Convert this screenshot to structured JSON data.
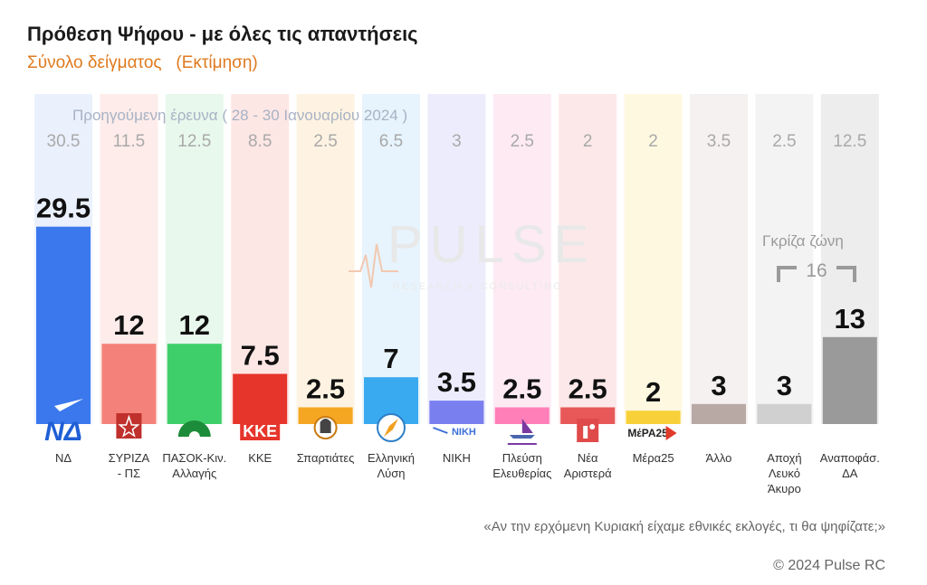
{
  "title": "Πρόθεση Ψήφου - με όλες τις απαντήσεις",
  "subtitle": "Σύνολο δείγματος   (Εκτίμηση)",
  "previous_survey_label": "Προηγούμενη έρευνα ( 28 - 30 Ιανουαρίου 2024 )",
  "watermark": {
    "brand": "PULSE",
    "tagline": "RESEARCH & CONSULTING"
  },
  "gray_zone": {
    "label": "Γκρίζα ζώνη",
    "value": "16"
  },
  "question": "«Αν την ερχόμενη Κυριακή είχαμε εθνικές εκλογές, τι θα ψηφίζατε;»",
  "copyright": "© 2024 Pulse RC",
  "chart_data": {
    "type": "bar",
    "title": "Πρόθεση Ψήφου - με όλες τις απαντήσεις",
    "subtitle": "Σύνολο δείγματος   (Εκτίμηση)",
    "categories": [
      "ΝΔ",
      "ΣΥΡΙΖΑ - ΠΣ",
      "ΠΑΣΟΚ-Κιν. Αλλαγής",
      "ΚΚΕ",
      "Σπαρτιάτες",
      "Ελληνική Λύση",
      "ΝΙΚΗ",
      "Πλεύση Ελευθερίας",
      "Νέα Αριστερά",
      "Μέρα25",
      "Άλλο",
      "Αποχή Λευκό Άκυρο",
      "Αναποφάσ. ΔΑ"
    ],
    "category_lines": [
      [
        "ΝΔ"
      ],
      [
        "ΣΥΡΙΖΑ",
        "- ΠΣ"
      ],
      [
        "ΠΑΣΟΚ-Κιν.",
        "Αλλαγής"
      ],
      [
        "ΚΚΕ"
      ],
      [
        "Σπαρτιάτες"
      ],
      [
        "Ελληνική",
        "Λύση"
      ],
      [
        "ΝΙΚΗ"
      ],
      [
        "Πλεύση",
        "Ελευθερίας"
      ],
      [
        "Νέα",
        "Αριστερά"
      ],
      [
        "Μέρα25"
      ],
      [
        "Άλλο"
      ],
      [
        "Αποχή",
        "Λευκό",
        "Άκυρο"
      ],
      [
        "Αναποφάσ.",
        "ΔΑ"
      ]
    ],
    "series": [
      {
        "name": "",
        "values": [
          29.5,
          12,
          12,
          7.5,
          2.5,
          7,
          3.5,
          2.5,
          2.5,
          2,
          3,
          3,
          13
        ]
      },
      {
        "name": "Προηγούμενη έρευνα ( 28 - 30 Ιανουαρίου 2024 )",
        "values": [
          30.5,
          11.5,
          12.5,
          8.5,
          2.5,
          6.5,
          3,
          2.5,
          2,
          2,
          3.5,
          2.5,
          12.5
        ]
      }
    ],
    "value_labels": [
      "29.5",
      "12",
      "12",
      "7.5",
      "2.5",
      "7",
      "3.5",
      "2.5",
      "2.5",
      "2",
      "3",
      "3",
      "13"
    ],
    "previous_labels": [
      "30.5",
      "11.5",
      "12.5",
      "8.5",
      "2.5",
      "6.5",
      "3",
      "2.5",
      "2",
      "2",
      "3.5",
      "2.5",
      "12.5"
    ],
    "colors": [
      "#3b78ee",
      "#f4827a",
      "#3fcf6a",
      "#e6352b",
      "#f5a623",
      "#3aaaf0",
      "#7a7ff0",
      "#ff7fb8",
      "#e85858",
      "#f8d13a",
      "#b8a9a4",
      "#d0d0d0",
      "#9a9a9a"
    ],
    "bg_colors": [
      "#eaf1fd",
      "#fdecea",
      "#e8f8ed",
      "#fde7e5",
      "#fef3e2",
      "#e7f4fd",
      "#ececfd",
      "#fdeaf3",
      "#fce8e8",
      "#fef8e0",
      "#f4f1f0",
      "#f3f3f3",
      "#ededed"
    ],
    "logos": [
      "nd-logo",
      "syriza-logo",
      "pasok-logo",
      "kke-logo",
      "spartiates-logo",
      "elliniki-lysi-logo",
      "niki-logo",
      "plefsi-logo",
      "nea-aristera-logo",
      "mera25-logo",
      "",
      "",
      ""
    ],
    "logo_text": [
      "ΝΔ",
      "",
      "",
      "ΚΚΕ",
      "",
      "",
      "ΝΙΚΗ",
      "",
      "",
      "ΜέΡΑ25",
      "",
      "",
      ""
    ],
    "ylim": [
      0,
      31
    ],
    "grid": false,
    "legend": "none"
  }
}
